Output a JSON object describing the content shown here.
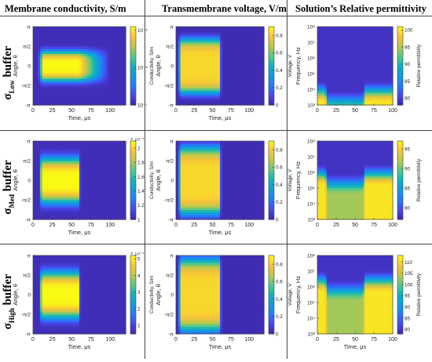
{
  "headers": {
    "col1": "Membrane conductivity, S/m",
    "col2": "Transmembrane voltage, V/m",
    "col3": "Solution’s Relative permittivity"
  },
  "rows": [
    {
      "sigma": "σ",
      "sub": "Low",
      "suffix": " buffer"
    },
    {
      "sigma": "σ",
      "sub": "Med",
      "suffix": " buffer"
    },
    {
      "sigma": "σ",
      "sub": "High",
      "suffix": " buffer"
    }
  ],
  "colors": {
    "background_map": "#3a2fd0",
    "high_map": "#f6dc2e",
    "colormap": "parula"
  },
  "chart_data": [
    {
      "type": "heatmap",
      "xlabel": "Time, μs",
      "ylabel": "Angle, θ",
      "x_ticks": [
        "0",
        "25",
        "50",
        "75",
        "100"
      ],
      "xlim": [
        0,
        120
      ],
      "y_ticks": [
        "-π",
        "-π/2",
        "0",
        "π/2",
        "π"
      ],
      "colorbar_label": "Conductivity, S/m",
      "colorbar_scale": "log",
      "colorbar_ticks": [
        "10⁻⁷",
        "10⁻⁶",
        "10⁻⁵"
      ],
      "clim": [
        -7,
        -4.9
      ],
      "region": {
        "t_start": 10,
        "t_end": 60,
        "decay_end": 95,
        "angle_halfwidth": 1.2
      }
    },
    {
      "type": "heatmap",
      "xlabel": "Time, μs",
      "ylabel": "Angle, θ",
      "x_ticks": [
        "0",
        "25",
        "50",
        "75",
        "100"
      ],
      "xlim": [
        0,
        120
      ],
      "y_ticks": [
        "-π",
        "-π/2",
        "0",
        "π/2",
        "π"
      ],
      "colorbar_label": "Voltage, V",
      "colorbar_scale": "linear",
      "colorbar_ticks": [
        "0",
        "0.2",
        "0.4",
        "0.6",
        "0.8"
      ],
      "clim": [
        0,
        0.9
      ],
      "region": {
        "t_start": 5,
        "t_end": 60,
        "angle_halfwidth": 2.2
      }
    },
    {
      "type": "heatmap",
      "xlabel": "",
      "ylabel": "Frequency, Hz",
      "x_ticks": [
        "0",
        "25",
        "50",
        "75",
        "100"
      ],
      "xlim": [
        0,
        100
      ],
      "y_ticks": [
        "10³",
        "10⁴",
        "10⁵",
        "10⁶",
        "10⁷",
        "10⁸"
      ],
      "ylim_log": [
        3,
        8
      ],
      "colorbar_label": "Relative permittivity",
      "colorbar_scale": "linear",
      "colorbar_ticks": [
        "80",
        "85",
        "90",
        "95",
        "100"
      ],
      "clim": [
        78,
        101
      ],
      "region": {
        "t_start": 10,
        "t_end": 60,
        "transition_log": 3.7
      }
    },
    {
      "type": "heatmap",
      "xlabel": "Time, μs",
      "ylabel": "Angle, θ",
      "x_ticks": [
        "0",
        "25",
        "50",
        "75",
        "100"
      ],
      "xlim": [
        0,
        120
      ],
      "y_ticks": [
        "-π",
        "-π/2",
        "0",
        "π/2",
        "π"
      ],
      "colorbar_label": "Conductivity, S/m",
      "colorbar_scale": "linear",
      "colorbar_exponent": "× 10⁻⁴",
      "colorbar_ticks": [
        "1",
        "1.2",
        "1.4",
        "1.6",
        "1.8",
        "2"
      ],
      "clim": [
        1,
        2.1
      ],
      "region": {
        "t_start": 10,
        "t_end": 60,
        "angle_halfwidth": 1.8
      }
    },
    {
      "type": "heatmap",
      "xlabel": "Time, μs",
      "ylabel": "Angle, θ",
      "x_ticks": [
        "0",
        "25",
        "50",
        "75",
        "100"
      ],
      "xlim": [
        0,
        120
      ],
      "y_ticks": [
        "-π",
        "-π/2",
        "0",
        "π/2",
        "π"
      ],
      "colorbar_label": "Voltage, V",
      "colorbar_scale": "linear",
      "colorbar_ticks": [
        "0",
        "0.2",
        "0.4",
        "0.6",
        "0.8"
      ],
      "clim": [
        0,
        0.9
      ],
      "region": {
        "t_start": 5,
        "t_end": 60,
        "angle_halfwidth": 2.7
      }
    },
    {
      "type": "heatmap",
      "xlabel": "",
      "ylabel": "Frequency, Hz",
      "x_ticks": [
        "0",
        "25",
        "50",
        "75",
        "100"
      ],
      "xlim": [
        0,
        100
      ],
      "y_ticks": [
        "10³",
        "10⁴",
        "10⁵",
        "10⁶",
        "10⁷",
        "10⁸"
      ],
      "ylim_log": [
        3,
        8
      ],
      "colorbar_label": "Relative permittivity",
      "colorbar_scale": "linear",
      "colorbar_ticks": [
        "80",
        "85",
        "90",
        "95"
      ],
      "clim": [
        77,
        97
      ],
      "region": {
        "t_start": 10,
        "t_end": 60,
        "transition_log": 5.7
      }
    },
    {
      "type": "heatmap",
      "xlabel": "Time, μs",
      "ylabel": "Angle, θ",
      "x_ticks": [
        "0",
        "25",
        "50",
        "75",
        "100"
      ],
      "xlim": [
        0,
        120
      ],
      "y_ticks": [
        "-π",
        "-π/2",
        "0",
        "π/2",
        "π"
      ],
      "colorbar_label": "Conductivity, S/m",
      "colorbar_scale": "linear",
      "colorbar_exponent": "× 10⁻⁴",
      "colorbar_ticks": [
        "1",
        "2",
        "3",
        "4",
        "5"
      ],
      "clim": [
        0.5,
        5.2
      ],
      "region": {
        "t_start": 10,
        "t_end": 60,
        "angle_halfwidth": 1.85
      }
    },
    {
      "type": "heatmap",
      "xlabel": "Time, μs",
      "ylabel": "Angle, θ",
      "x_ticks": [
        "0",
        "25",
        "50",
        "75",
        "100"
      ],
      "xlim": [
        0,
        120
      ],
      "y_ticks": [
        "-π",
        "-π/2",
        "0",
        "π/2",
        "π"
      ],
      "colorbar_label": "Voltage, V",
      "colorbar_scale": "linear",
      "colorbar_ticks": [
        "0",
        "0.2",
        "0.4",
        "0.6",
        "0.8"
      ],
      "clim": [
        0,
        0.9
      ],
      "region": {
        "t_start": 5,
        "t_end": 60,
        "angle_halfwidth": 2.9
      }
    },
    {
      "type": "heatmap",
      "xlabel": "Time, μs",
      "ylabel": "Frequency, Hz",
      "x_ticks": [
        "0",
        "25",
        "50",
        "75",
        "100"
      ],
      "xlim": [
        0,
        100
      ],
      "y_ticks": [
        "10³",
        "10⁴",
        "10⁵",
        "10⁶",
        "10⁷",
        "10⁸"
      ],
      "ylim_log": [
        3,
        8
      ],
      "colorbar_label": "Relative permittivity",
      "colorbar_scale": "linear",
      "colorbar_ticks": [
        "80",
        "85",
        "90",
        "95",
        "100",
        "105",
        "110"
      ],
      "clim": [
        78,
        113
      ],
      "region": {
        "t_start": 10,
        "t_end": 60,
        "transition_log": 6.2
      }
    }
  ]
}
